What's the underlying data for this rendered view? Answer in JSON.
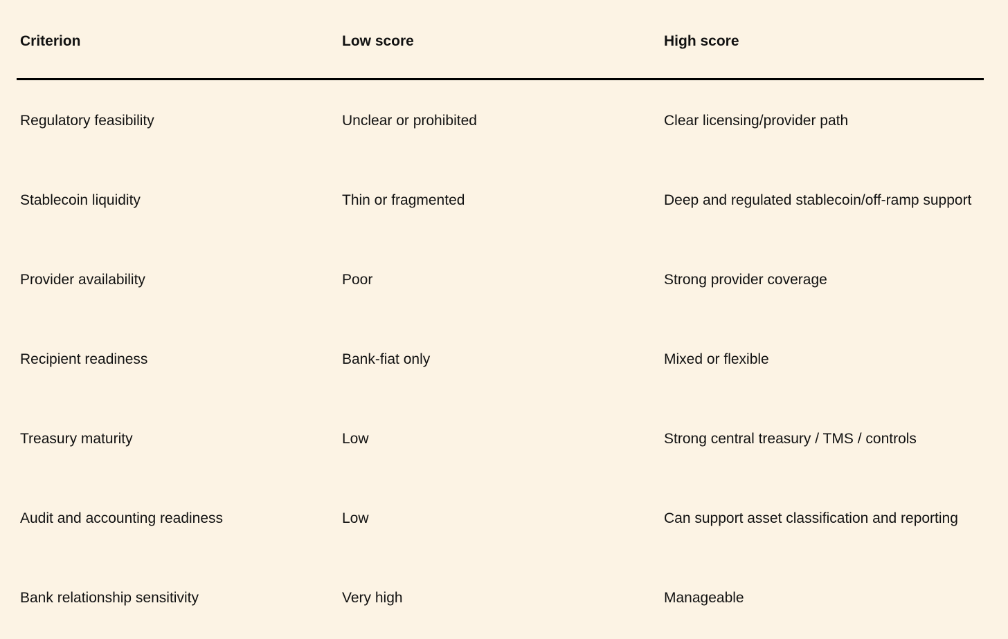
{
  "table": {
    "headers": [
      "Criterion",
      "Low score",
      "High score"
    ],
    "rows": [
      [
        "Regulatory feasibility",
        "Unclear or prohibited",
        "Clear licensing/provider path"
      ],
      [
        "Stablecoin liquidity",
        "Thin or fragmented",
        "Deep and regulated stablecoin/off-ramp support"
      ],
      [
        "Provider availability",
        "Poor",
        "Strong provider coverage"
      ],
      [
        "Recipient readiness",
        "Bank-fiat only",
        "Mixed or flexible"
      ],
      [
        "Treasury maturity",
        "Low",
        "Strong central treasury / TMS / controls"
      ],
      [
        "Audit and accounting readiness",
        "Low",
        "Can support asset classification and reporting"
      ],
      [
        "Bank relationship sensitivity",
        "Very high",
        "Manageable"
      ]
    ]
  }
}
